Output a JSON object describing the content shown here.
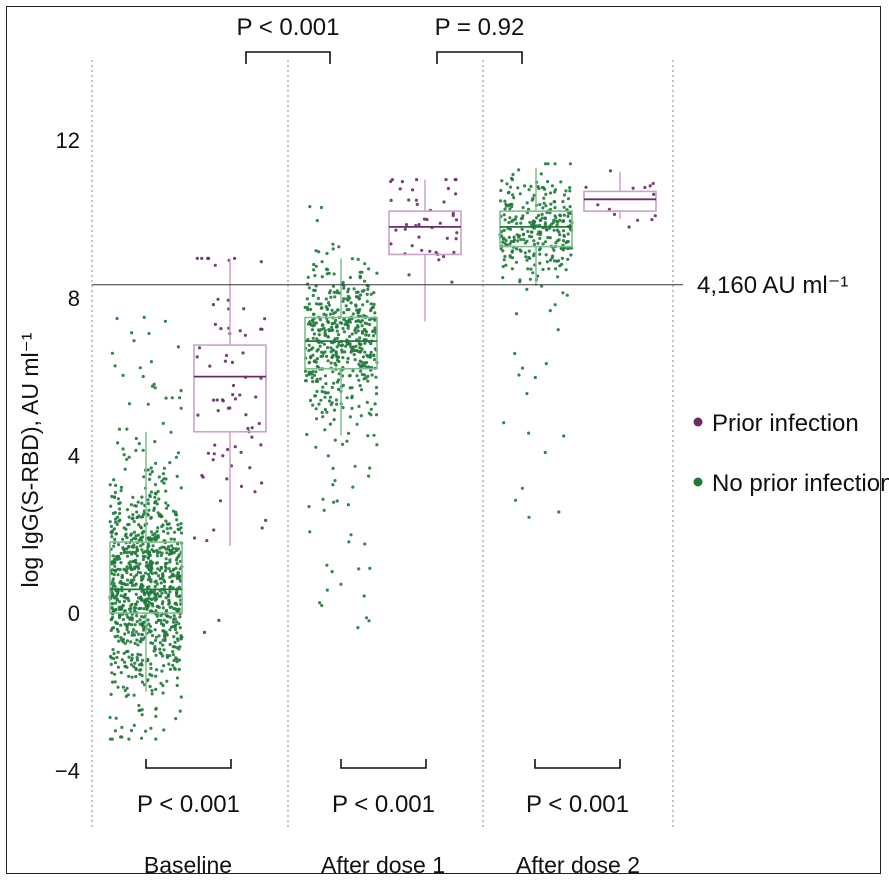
{
  "chart_data": {
    "type": "scatter",
    "subtype": "box-and-jitter",
    "title": "",
    "ylabel": "log IgG(S-RBD), AU ml⁻¹",
    "ylim": [
      -6,
      14
    ],
    "yticks": [
      -4,
      0,
      4,
      8,
      12
    ],
    "grid": false,
    "legend_position": "right",
    "categories": [
      "Baseline",
      "After dose 1",
      "After dose 2"
    ],
    "threshold": {
      "value": 8.33,
      "label": "4,160 AU ml⁻¹"
    },
    "series": [
      {
        "name": "Prior infection",
        "color": "#6b2b6b",
        "box_color": "#c8a2c8",
        "groups": [
          {
            "category": "Baseline",
            "whisker_low": 1.7,
            "q1": 4.6,
            "median": 6.0,
            "q3": 6.8,
            "whisker_high": 9.0,
            "n": 75,
            "spread_low": -1.5,
            "spread_high": 9.0
          },
          {
            "category": "After dose 1",
            "whisker_low": 7.4,
            "q1": 9.1,
            "median": 9.8,
            "q3": 10.2,
            "whisker_high": 11.0,
            "n": 45,
            "spread_low": 6.2,
            "spread_high": 11.0
          },
          {
            "category": "After dose 2",
            "whisker_low": 10.0,
            "q1": 10.2,
            "median": 10.5,
            "q3": 10.7,
            "whisker_high": 11.2,
            "n": 14,
            "spread_low": 9.5,
            "spread_high": 11.3
          }
        ]
      },
      {
        "name": "No prior infection",
        "color": "#1f7a3a",
        "box_color": "#7fbf8f",
        "groups": [
          {
            "category": "Baseline",
            "whisker_low": -2.0,
            "q1": 0.0,
            "median": 0.6,
            "q3": 1.8,
            "whisker_high": 4.6,
            "n": 950,
            "spread_low": -3.2,
            "spread_high": 7.7
          },
          {
            "category": "After dose 1",
            "whisker_low": 4.5,
            "q1": 6.2,
            "median": 6.9,
            "q3": 7.5,
            "whisker_high": 9.0,
            "n": 520,
            "spread_low": -0.6,
            "spread_high": 10.5
          },
          {
            "category": "After dose 2",
            "whisker_low": 8.3,
            "q1": 9.3,
            "median": 9.8,
            "q3": 10.2,
            "whisker_high": 11.3,
            "n": 300,
            "spread_low": 1.3,
            "spread_high": 11.4
          }
        ]
      }
    ],
    "annotations": {
      "between_groups": [
        {
          "text": "P < 0.001"
        },
        {
          "text": "P = 0.92"
        }
      ],
      "within_groups": [
        {
          "text": "P < 0.001"
        },
        {
          "text": "P < 0.001"
        },
        {
          "text": "P < 0.001"
        }
      ]
    }
  }
}
